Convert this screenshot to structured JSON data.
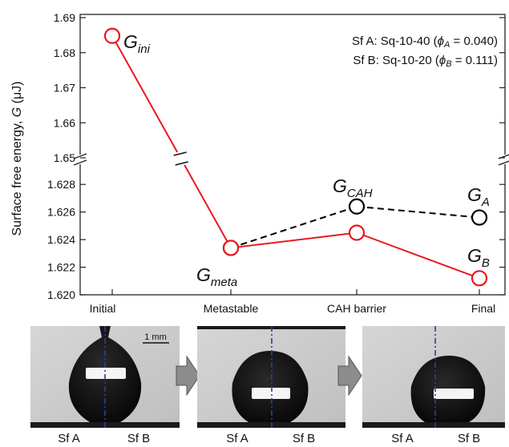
{
  "chart_data": {
    "type": "line",
    "categories": [
      "Initial",
      "Metastable",
      "CAH barrier",
      "Final"
    ],
    "ylabel_prefix": "Surface free energy, ",
    "ylabel_symbol": "G",
    "ylabel_unit": " (μJ)",
    "y_axis_broken": true,
    "y_upper_segment": [
      1.65,
      1.69
    ],
    "y_lower_segment": [
      1.62,
      1.629
    ],
    "yticks_upper": [
      "1.69",
      "1.68",
      "1.67",
      "1.66",
      "1.65"
    ],
    "yticks_lower": [
      "1.628",
      "1.626",
      "1.624",
      "1.622",
      "1.620"
    ],
    "series": [
      {
        "name": "Sf A",
        "color": "#000000",
        "style": "dashed",
        "points": [
          [
            1,
            1.6234
          ],
          [
            2,
            1.6264
          ],
          [
            3,
            1.6256
          ]
        ]
      },
      {
        "name": "Sf B",
        "color": "#e8191f",
        "style": "solid",
        "points": [
          [
            0,
            1.6848
          ],
          [
            1,
            1.6234
          ],
          [
            2,
            1.6245
          ],
          [
            3,
            1.6212
          ]
        ]
      }
    ],
    "legend": [
      {
        "prefix": "Sf A: Sq-10-40 (",
        "phi": "ϕ",
        "sub": "A",
        "suffix": " = 0.040)"
      },
      {
        "prefix": "Sf B: Sq-10-20 (",
        "phi": "ϕ",
        "sub": "B",
        "suffix": " = 0.111)"
      }
    ],
    "annotations": [
      {
        "main": "G",
        "sub": "ini"
      },
      {
        "main": "G",
        "sub": "meta"
      },
      {
        "main": "G",
        "sub": "CAH"
      },
      {
        "main": "G",
        "sub": "A"
      },
      {
        "main": "G",
        "sub": "B"
      }
    ]
  },
  "photos": {
    "scale_label": "1 mm",
    "panels": [
      {
        "left_label": "Sf A",
        "right_label": "Sf B"
      },
      {
        "left_label": "Sf A",
        "right_label": "Sf B"
      },
      {
        "left_label": "Sf A",
        "right_label": "Sf B"
      }
    ]
  },
  "colors": {
    "sfA": "#000000",
    "sfB": "#e8191f",
    "divider": "#2c3e9e",
    "arrow": "#8c8c8c"
  }
}
